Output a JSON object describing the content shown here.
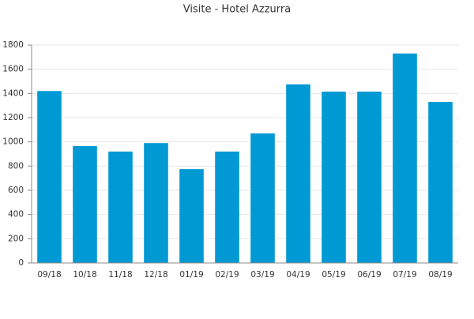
{
  "chart_data": {
    "type": "bar",
    "title": "Visite - Hotel Azzurra",
    "categories": [
      "09/18",
      "10/18",
      "11/18",
      "12/18",
      "01/19",
      "02/19",
      "03/19",
      "04/19",
      "05/19",
      "06/19",
      "07/19",
      "08/19"
    ],
    "values": [
      1420,
      965,
      920,
      990,
      775,
      920,
      1070,
      1475,
      1415,
      1415,
      1730,
      1330
    ],
    "color": "#0099d4",
    "ylim": [
      0,
      1800
    ],
    "yticks": [
      0,
      200,
      400,
      600,
      800,
      1000,
      1200,
      1400,
      1600,
      1800
    ],
    "grid": true
  }
}
